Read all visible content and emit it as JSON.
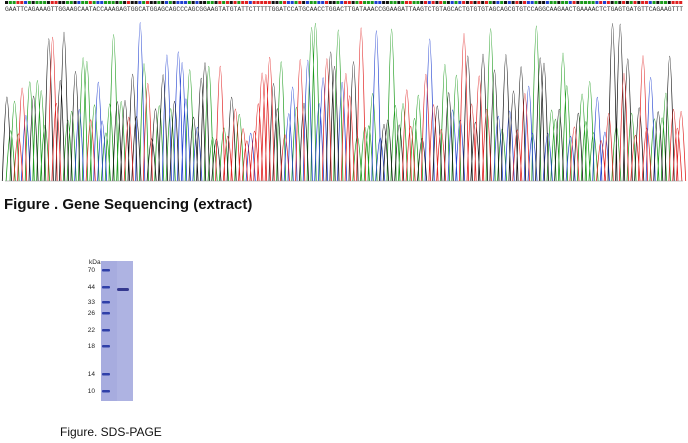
{
  "sequencing": {
    "sequence": "GAATTCAGAAAGTTGGAAGCAATACCAAAGAGTGGCATGGAGCAGCCCAGCGGAAGTATGTATTCTTTTTGGATCCATGCAACCTGGACTTGATAAACCGGAAGATTAAGTCTGTAGCACTGTGTGTAGCAGCGTGTCCAGGCAAGAACTGAAAACTCTGAGTGATGTTCAGAAGTTT",
    "title": "Figure . Gene Sequencing (extract)"
  },
  "gel": {
    "unit": "kDa",
    "markers": [
      "70",
      "44",
      "33",
      "26",
      "22",
      "18",
      "14",
      "10"
    ],
    "caption": "Figure. SDS-PAGE"
  }
}
